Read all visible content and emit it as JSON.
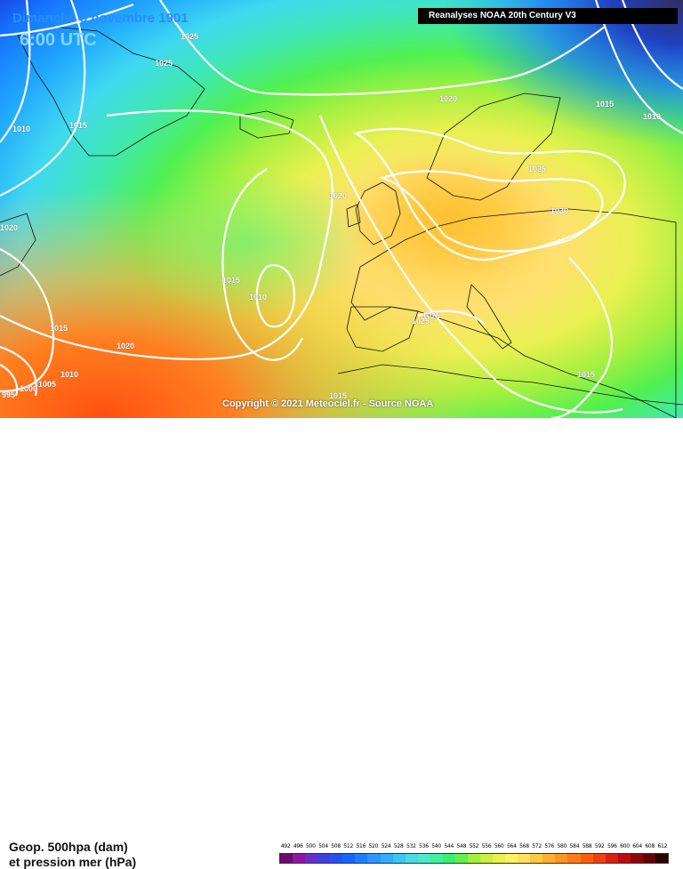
{
  "header": {
    "date": "Dimanche 3 novembre 1901",
    "time": "6:00 UTC",
    "source": "Reanalyses NOAA 20th Century V3"
  },
  "copyright": "Copyright © 2021 Meteociel.fr - Source NOAA",
  "legend": {
    "title_line1": "Geop. 500hpa (dam)",
    "title_line2": "et pression mer (hPa)",
    "scale_values": [
      "492",
      "496",
      "500",
      "504",
      "508",
      "512",
      "516",
      "520",
      "524",
      "528",
      "532",
      "536",
      "540",
      "544",
      "548",
      "552",
      "556",
      "560",
      "564",
      "568",
      "572",
      "576",
      "580",
      "584",
      "588",
      "592",
      "596",
      "600",
      "604",
      "608",
      "612"
    ],
    "scale_colors": [
      "#6d0a6d",
      "#8a1aa0",
      "#6a2fc8",
      "#4040e0",
      "#2850f0",
      "#1565ff",
      "#1f7fff",
      "#2a96ff",
      "#30aefa",
      "#3cc6f2",
      "#48dbe2",
      "#50e8c8",
      "#3ff0a0",
      "#38f070",
      "#60f048",
      "#9ef040",
      "#c8f040",
      "#e8f050",
      "#fff060",
      "#ffe060",
      "#ffc840",
      "#ffae30",
      "#ff9420",
      "#ff7a18",
      "#ff5c10",
      "#f04010",
      "#d82010",
      "#b80c10",
      "#8c0808",
      "#600404",
      "#2a0000"
    ]
  },
  "isobars": [
    {
      "label": "1025"
    },
    {
      "label": "1025"
    },
    {
      "label": "1010"
    },
    {
      "label": "1015"
    },
    {
      "label": "1020"
    },
    {
      "label": "1015"
    },
    {
      "label": "1010"
    },
    {
      "label": "1020"
    },
    {
      "label": "1025"
    },
    {
      "label": "1030"
    },
    {
      "label": "1020"
    },
    {
      "label": "1015"
    },
    {
      "label": "1010"
    },
    {
      "label": "1015"
    },
    {
      "label": "1020"
    },
    {
      "label": "1025"
    },
    {
      "label": "1025"
    },
    {
      "label": "1015"
    },
    {
      "label": "1015"
    },
    {
      "label": "1010"
    },
    {
      "label": "1005"
    },
    {
      "label": "1000"
    },
    {
      "label": "995"
    },
    {
      "label": "1015"
    }
  ]
}
